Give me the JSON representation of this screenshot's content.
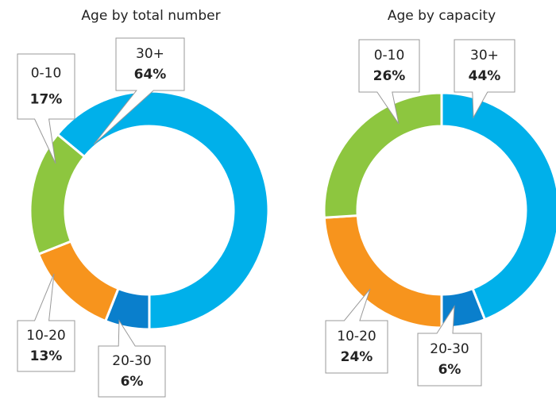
{
  "chart_data": [
    {
      "type": "donut",
      "title": "Age by total number",
      "categories": [
        "30+",
        "20-30",
        "10-20",
        "0-10"
      ],
      "values": [
        64,
        6,
        13,
        17
      ],
      "value_labels": [
        "64%",
        "6%",
        "13%",
        "17%"
      ],
      "colors": [
        "#00b0ea",
        "#0a7fcc",
        "#f7941d",
        "#8dc63f"
      ]
    },
    {
      "type": "donut",
      "title": "Age by capacity",
      "categories": [
        "30+",
        "20-30",
        "10-20",
        "0-10"
      ],
      "values": [
        44,
        6,
        24,
        26
      ],
      "value_labels": [
        "44%",
        "6%",
        "24%",
        "26%"
      ],
      "colors": [
        "#00b0ea",
        "#0a7fcc",
        "#f7941d",
        "#8dc63f"
      ]
    }
  ]
}
